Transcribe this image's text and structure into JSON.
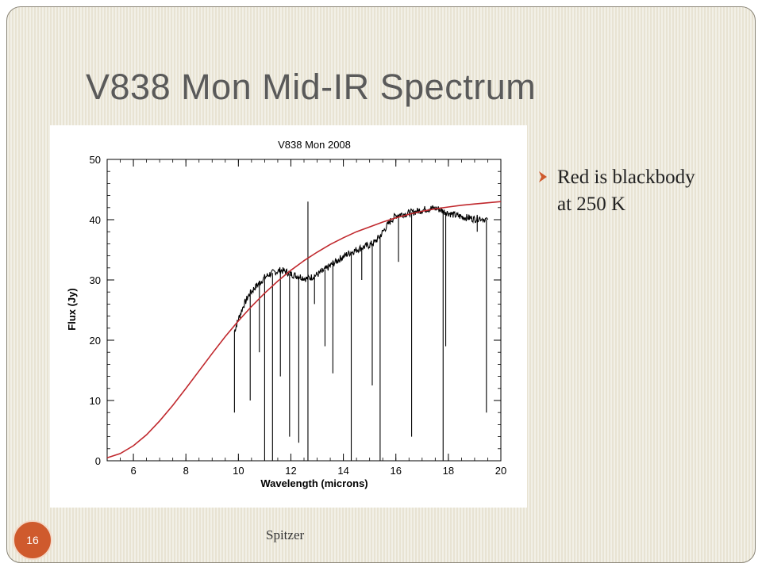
{
  "slide": {
    "title": "V838 Mon Mid-IR Spectrum",
    "bullet_text": "Red is blackbody at 250 K",
    "footer": "Spitzer",
    "page_number": "16"
  },
  "colors": {
    "background": "#e8e3d3",
    "accent": "#cf5a2d",
    "spectrum": "#000000",
    "blackbody": "#c0282d"
  },
  "chart_data": {
    "type": "line",
    "title": "V838 Mon 2008",
    "xlabel": "Wavelength (microns)",
    "ylabel": "Flux (Jy)",
    "xlim": [
      5,
      20
    ],
    "ylim": [
      0,
      50
    ],
    "xticks": [
      6,
      8,
      10,
      12,
      14,
      16,
      18,
      20
    ],
    "yticks": [
      0,
      10,
      20,
      30,
      40,
      50
    ],
    "grid": false,
    "series": [
      {
        "color": "#000000",
        "x": [
          9.85,
          10.0,
          10.2,
          10.4,
          10.6,
          10.8,
          11.0,
          11.2,
          11.4,
          11.6,
          11.8,
          12.0,
          12.2,
          12.4,
          12.6,
          12.8,
          13.0,
          13.2,
          13.4,
          13.6,
          13.8,
          14.0,
          14.2,
          14.4,
          14.6,
          14.8,
          15.0,
          15.2,
          15.4,
          15.6,
          15.8,
          16.0,
          16.2,
          16.4,
          16.6,
          16.8,
          17.0,
          17.2,
          17.4,
          17.6,
          17.8,
          18.0,
          18.2,
          18.4,
          18.6,
          18.8,
          19.0,
          19.2,
          19.5
        ],
        "y": [
          21.5,
          23.5,
          25.8,
          27.5,
          28.6,
          29.5,
          30.4,
          31.0,
          31.3,
          31.6,
          31.4,
          31.0,
          30.7,
          30.5,
          30.2,
          30.5,
          30.9,
          31.4,
          32.0,
          32.7,
          33.3,
          33.9,
          34.4,
          34.8,
          35.2,
          35.5,
          35.8,
          36.3,
          37.3,
          38.6,
          39.8,
          40.7,
          40.9,
          41.0,
          41.2,
          41.4,
          41.6,
          41.8,
          41.9,
          41.8,
          41.4,
          41.1,
          40.8,
          40.6,
          40.4,
          40.3,
          40.1,
          40.3,
          40.0
        ]
      },
      {
        "color": "#c0282d",
        "x": [
          5.0,
          5.5,
          6.0,
          6.5,
          7.0,
          7.5,
          8.0,
          8.5,
          9.0,
          9.5,
          10.0,
          10.5,
          11.0,
          11.5,
          12.0,
          12.5,
          13.0,
          13.5,
          14.0,
          14.5,
          15.0,
          15.5,
          16.0,
          16.5,
          17.0,
          17.5,
          18.0,
          18.5,
          19.0,
          19.5,
          20.0
        ],
        "y": [
          0.5,
          1.2,
          2.5,
          4.3,
          6.6,
          9.2,
          12.0,
          14.9,
          17.8,
          20.6,
          23.2,
          25.6,
          27.8,
          29.8,
          31.6,
          33.2,
          34.6,
          35.9,
          37.0,
          38.0,
          38.8,
          39.6,
          40.3,
          40.9,
          41.4,
          41.8,
          42.1,
          42.4,
          42.6,
          42.8,
          43.0
        ]
      }
    ],
    "absorption_lines": [
      {
        "x": 9.85,
        "y": 8.0
      },
      {
        "x": 10.45,
        "y": 10.0
      },
      {
        "x": 10.8,
        "y": 18.0
      },
      {
        "x": 11.0,
        "y": 0.0
      },
      {
        "x": 11.3,
        "y": 0.0
      },
      {
        "x": 11.6,
        "y": 14.0
      },
      {
        "x": 11.95,
        "y": 4.0
      },
      {
        "x": 12.3,
        "y": 3.0
      },
      {
        "x": 12.65,
        "y": 0.0
      },
      {
        "x": 12.65,
        "y": 43.0
      },
      {
        "x": 12.9,
        "y": 26.0
      },
      {
        "x": 13.3,
        "y": 19.0
      },
      {
        "x": 13.6,
        "y": 14.5
      },
      {
        "x": 14.3,
        "y": 0.0
      },
      {
        "x": 14.7,
        "y": 30.0
      },
      {
        "x": 15.1,
        "y": 12.5
      },
      {
        "x": 15.4,
        "y": 0.0
      },
      {
        "x": 16.1,
        "y": 33.0
      },
      {
        "x": 16.6,
        "y": 4.0
      },
      {
        "x": 17.8,
        "y": 0.0
      },
      {
        "x": 17.9,
        "y": 19.0
      },
      {
        "x": 19.1,
        "y": 38.0
      },
      {
        "x": 19.45,
        "y": 8.0
      }
    ]
  }
}
